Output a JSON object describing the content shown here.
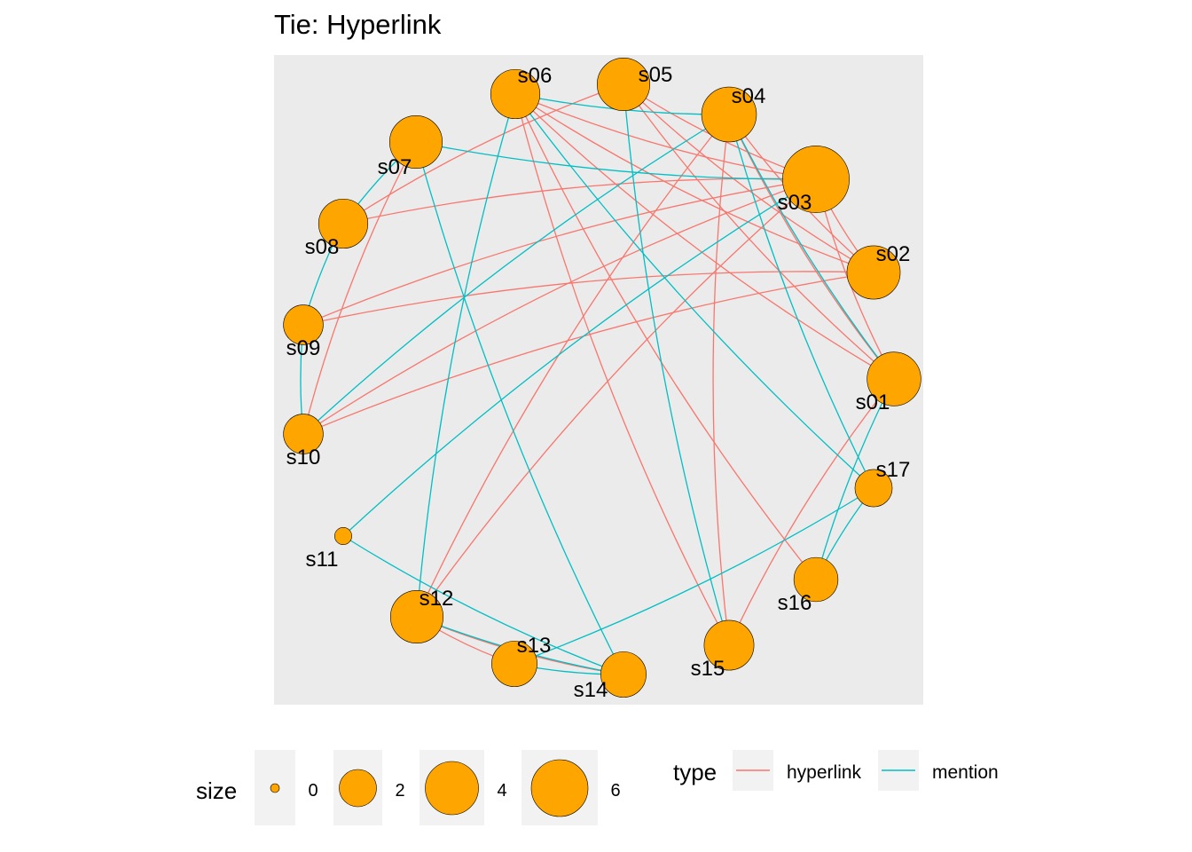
{
  "title": "Tie: Hyperlink",
  "colors": {
    "panel": "#EBEBEB",
    "node_fill": "#FFA500",
    "node_stroke": "#000000",
    "hyperlink": "#F8766D",
    "mention": "#00BFC4",
    "legend_key_bg": "#F2F2F2"
  },
  "nodes": [
    {
      "id": "s01",
      "size": 4.3
    },
    {
      "id": "s02",
      "size": 4.2
    },
    {
      "id": "s03",
      "size": 7.0
    },
    {
      "id": "s04",
      "size": 4.5
    },
    {
      "id": "s05",
      "size": 4.1
    },
    {
      "id": "s06",
      "size": 3.5
    },
    {
      "id": "s07",
      "size": 4.1
    },
    {
      "id": "s08",
      "size": 3.5
    },
    {
      "id": "s09",
      "size": 2.1
    },
    {
      "id": "s10",
      "size": 2.1
    },
    {
      "id": "s11",
      "size": 0.2
    },
    {
      "id": "s12",
      "size": 4.1
    },
    {
      "id": "s13",
      "size": 2.9
    },
    {
      "id": "s14",
      "size": 2.9
    },
    {
      "id": "s15",
      "size": 3.6
    },
    {
      "id": "s16",
      "size": 2.7
    },
    {
      "id": "s17",
      "size": 1.8
    }
  ],
  "edges": [
    {
      "from": "s06",
      "to": "s03",
      "type": "hyperlink"
    },
    {
      "from": "s06",
      "to": "s02",
      "type": "hyperlink"
    },
    {
      "from": "s06",
      "to": "s01",
      "type": "hyperlink"
    },
    {
      "from": "s06",
      "to": "s15",
      "type": "hyperlink"
    },
    {
      "from": "s06",
      "to": "s16",
      "type": "hyperlink"
    },
    {
      "from": "s05",
      "to": "s03",
      "type": "hyperlink"
    },
    {
      "from": "s05",
      "to": "s02",
      "type": "hyperlink"
    },
    {
      "from": "s05",
      "to": "s01",
      "type": "hyperlink"
    },
    {
      "from": "s05",
      "to": "s08",
      "type": "hyperlink"
    },
    {
      "from": "s04",
      "to": "s01",
      "type": "hyperlink"
    },
    {
      "from": "s04",
      "to": "s02",
      "type": "hyperlink"
    },
    {
      "from": "s04",
      "to": "s15",
      "type": "hyperlink"
    },
    {
      "from": "s04",
      "to": "s12",
      "type": "hyperlink"
    },
    {
      "from": "s03",
      "to": "s08",
      "type": "hyperlink"
    },
    {
      "from": "s03",
      "to": "s09",
      "type": "hyperlink"
    },
    {
      "from": "s03",
      "to": "s10",
      "type": "hyperlink"
    },
    {
      "from": "s03",
      "to": "s12",
      "type": "hyperlink"
    },
    {
      "from": "s03",
      "to": "s01",
      "type": "hyperlink"
    },
    {
      "from": "s03",
      "to": "s02",
      "type": "hyperlink"
    },
    {
      "from": "s02",
      "to": "s09",
      "type": "hyperlink"
    },
    {
      "from": "s02",
      "to": "s10",
      "type": "hyperlink"
    },
    {
      "from": "s01",
      "to": "s15",
      "type": "hyperlink"
    },
    {
      "from": "s07",
      "to": "s10",
      "type": "hyperlink"
    },
    {
      "from": "s12",
      "to": "s13",
      "type": "hyperlink"
    },
    {
      "from": "s12",
      "to": "s14",
      "type": "hyperlink"
    },
    {
      "from": "s06",
      "to": "s04",
      "type": "mention"
    },
    {
      "from": "s06",
      "to": "s12",
      "type": "mention"
    },
    {
      "from": "s06",
      "to": "s17",
      "type": "mention"
    },
    {
      "from": "s05",
      "to": "s15",
      "type": "mention"
    },
    {
      "from": "s04",
      "to": "s01",
      "type": "mention"
    },
    {
      "from": "s04",
      "to": "s10",
      "type": "mention"
    },
    {
      "from": "s04",
      "to": "s17",
      "type": "mention"
    },
    {
      "from": "s07",
      "to": "s03",
      "type": "mention"
    },
    {
      "from": "s07",
      "to": "s08",
      "type": "mention"
    },
    {
      "from": "s07",
      "to": "s14",
      "type": "mention"
    },
    {
      "from": "s08",
      "to": "s09",
      "type": "mention"
    },
    {
      "from": "s09",
      "to": "s10",
      "type": "mention"
    },
    {
      "from": "s03",
      "to": "s11",
      "type": "mention"
    },
    {
      "from": "s11",
      "to": "s14",
      "type": "mention"
    },
    {
      "from": "s12",
      "to": "s14",
      "type": "mention"
    },
    {
      "from": "s13",
      "to": "s14",
      "type": "mention"
    },
    {
      "from": "s13",
      "to": "s17",
      "type": "mention"
    },
    {
      "from": "s01",
      "to": "s16",
      "type": "mention"
    },
    {
      "from": "s17",
      "to": "s16",
      "type": "mention"
    }
  ],
  "legend": {
    "size": {
      "title": "size",
      "breaks": [
        "0",
        "2",
        "4",
        "6"
      ]
    },
    "type": {
      "title": "type",
      "items": [
        "hyperlink",
        "mention"
      ]
    }
  }
}
